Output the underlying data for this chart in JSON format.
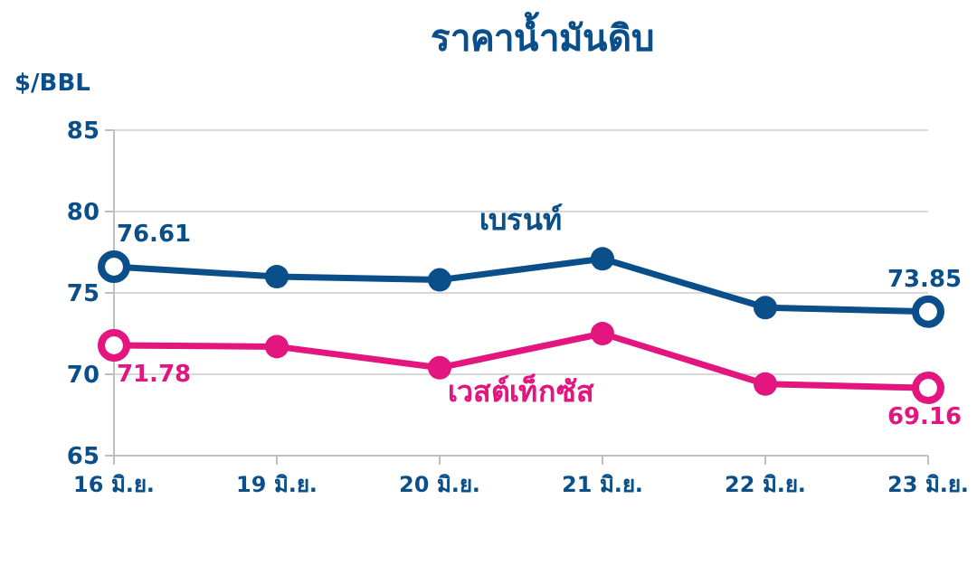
{
  "chart_data": {
    "type": "line",
    "title": "ราคาน้ำมันดิบ",
    "ylabel": "$/BBL",
    "categories": [
      "16 มิ.ย.",
      "19 มิ.ย.",
      "20 มิ.ย.",
      "21 มิ.ย.",
      "22 มิ.ย.",
      "23 มิ.ย."
    ],
    "series": [
      {
        "name": "เบรนท์",
        "color": "#0b4f8a",
        "values": [
          76.61,
          76.0,
          75.8,
          77.1,
          74.1,
          73.85
        ],
        "value_labels": [
          "76.61",
          null,
          null,
          null,
          null,
          "73.85"
        ]
      },
      {
        "name": "เวสต์เท็กซัส",
        "color": "#e3157f",
        "values": [
          71.78,
          71.7,
          70.4,
          72.5,
          69.4,
          69.16
        ],
        "value_labels": [
          "71.78",
          null,
          null,
          null,
          null,
          "69.16"
        ]
      }
    ],
    "ylim": [
      65,
      85
    ],
    "yticks": [
      65,
      70,
      75,
      80,
      85
    ],
    "grid": "y",
    "marker": "circle",
    "line_style": "solid"
  }
}
